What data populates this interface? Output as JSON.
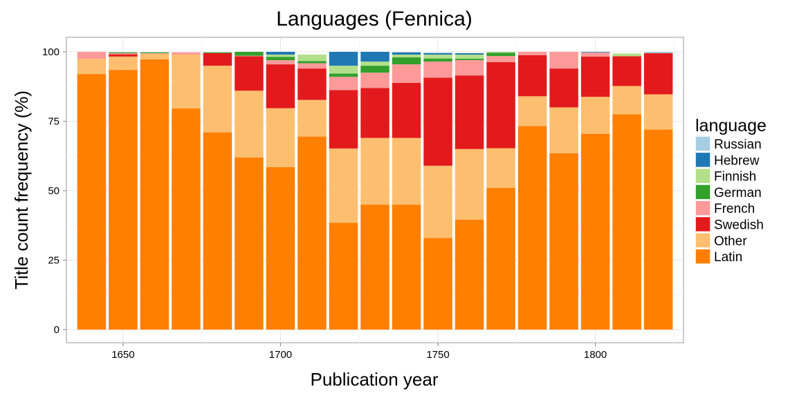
{
  "chart_data": {
    "type": "bar",
    "stacked": true,
    "title": "Languages (Fennica)",
    "xlabel": "Publication year",
    "ylabel": "Title count frequency (%)",
    "ylim": [
      0,
      100
    ],
    "y_ticks": [
      0,
      25,
      50,
      75,
      100
    ],
    "xlim": [
      1632,
      1828
    ],
    "x_ticks": [
      1650,
      1700,
      1750,
      1800
    ],
    "bin_width": 10,
    "grid": true,
    "legend": {
      "title": "language",
      "position": "right"
    },
    "categories": [
      1640,
      1650,
      1660,
      1670,
      1680,
      1690,
      1700,
      1710,
      1720,
      1730,
      1740,
      1750,
      1760,
      1770,
      1780,
      1790,
      1800,
      1810,
      1820
    ],
    "series": [
      {
        "name": "Latin",
        "color": "#FF7F00",
        "values": [
          92,
          93.5,
          97.3,
          79.6,
          71,
          62,
          58.5,
          69.5,
          38.5,
          45,
          45,
          33,
          39.6,
          51,
          73.3,
          63.5,
          70.5,
          77.5,
          72
        ]
      },
      {
        "name": "Other",
        "color": "#FDBF6F",
        "values": [
          5.5,
          4.8,
          2.0,
          19.4,
          24,
          24,
          21.2,
          13.2,
          26.7,
          24,
          24,
          26,
          25.4,
          14.3,
          10.7,
          16.5,
          13.3,
          10.2,
          12.7
        ]
      },
      {
        "name": "Swedish",
        "color": "#E31A1C",
        "values": [
          0,
          0.8,
          0,
          0,
          4.5,
          12.4,
          15.8,
          11.3,
          21,
          18,
          19.8,
          31.7,
          26.5,
          31,
          14.8,
          14,
          14.5,
          10.7,
          14.8
        ]
      },
      {
        "name": "French",
        "color": "#FB9A99",
        "values": [
          2.5,
          0.4,
          0.2,
          0.8,
          0,
          0.2,
          1.5,
          1.9,
          4.8,
          5.5,
          6.7,
          5.8,
          5.5,
          2.2,
          1.2,
          6,
          1.5,
          0,
          0
        ]
      },
      {
        "name": "German",
        "color": "#33A02C",
        "values": [
          0,
          0.3,
          0.3,
          0,
          0.3,
          1.4,
          1.2,
          0.8,
          1.2,
          2.5,
          2.5,
          1.1,
          0.5,
          1.2,
          0,
          0,
          0,
          0,
          0
        ]
      },
      {
        "name": "Finnish",
        "color": "#B2DF8A",
        "values": [
          0,
          0,
          0,
          0,
          0,
          0,
          0.8,
          2.3,
          2.8,
          1.5,
          1.0,
          1.4,
          1.5,
          0.3,
          0,
          0,
          0,
          1.0,
          0
        ]
      },
      {
        "name": "Hebrew",
        "color": "#1F78B4",
        "values": [
          0,
          0,
          0,
          0,
          0,
          0,
          1.0,
          0,
          5.0,
          3.5,
          0.8,
          0.5,
          0.5,
          0,
          0,
          0,
          0.2,
          0,
          0
        ]
      },
      {
        "name": "Russian",
        "color": "#A6CEE3",
        "values": [
          0,
          0,
          0,
          0,
          0,
          0,
          0,
          0,
          0,
          0,
          0,
          0.2,
          0,
          0,
          0,
          0,
          0,
          0,
          0.5
        ]
      }
    ]
  }
}
